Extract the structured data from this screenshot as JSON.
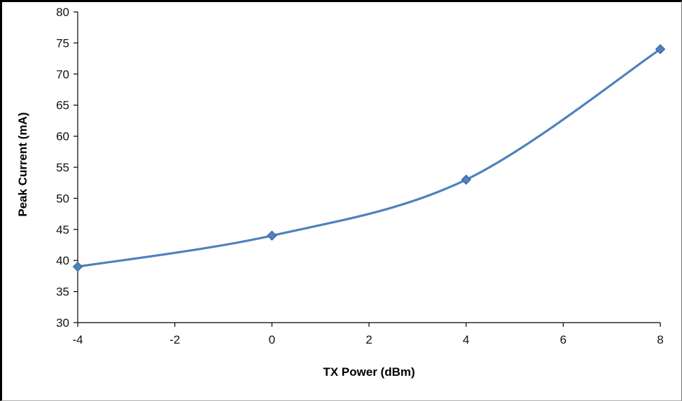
{
  "chart_data": {
    "type": "line",
    "title": "",
    "xlabel": "TX Power (dBm)",
    "ylabel": "Peak Current (mA)",
    "x": [
      -4,
      0,
      4,
      8
    ],
    "values": [
      39,
      44,
      53,
      74
    ],
    "series_name": "Peak Current",
    "xlim": [
      -4,
      8
    ],
    "ylim": [
      30,
      80
    ],
    "x_ticks": [
      -4,
      -2,
      0,
      2,
      4,
      6,
      8
    ],
    "y_ticks": [
      30,
      35,
      40,
      45,
      50,
      55,
      60,
      65,
      70,
      75,
      80
    ],
    "grid": false,
    "legend_position": "none",
    "line_color": "#4f81bd",
    "marker": "diamond",
    "marker_color": "#4f81bd",
    "marker_outline_color": "#2f5d94",
    "axis_color": "#000000",
    "smooth": true
  }
}
